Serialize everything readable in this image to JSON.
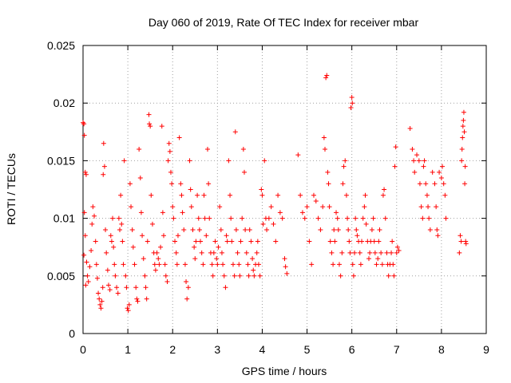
{
  "chart_data": {
    "type": "scatter",
    "title": "Day 060 of 2019, Rate Of TEC Index for receiver mbar",
    "xlabel": "GPS time / hours",
    "ylabel": "ROTI / TECUs",
    "xlim": [
      0,
      9
    ],
    "ylim": [
      0,
      0.025
    ],
    "xticks": [
      "0",
      "1",
      "2",
      "3",
      "4",
      "5",
      "6",
      "7",
      "8",
      "9"
    ],
    "yticks": [
      "0",
      "0.005",
      "0.01",
      "0.015",
      "0.02",
      "0.025"
    ],
    "grid": true,
    "marker": "+",
    "series": [
      {
        "name": "ROTI",
        "color": "#ff0000",
        "points": [
          [
            0.0,
            0.0183
          ],
          [
            0.02,
            0.0182
          ],
          [
            0.03,
            0.0172
          ],
          [
            0.05,
            0.014
          ],
          [
            0.07,
            0.0138
          ],
          [
            0.03,
            0.0105
          ],
          [
            0.05,
            0.0085
          ],
          [
            0.02,
            0.0068
          ],
          [
            0.08,
            0.0062
          ],
          [
            0.1,
            0.005
          ],
          [
            0.12,
            0.0045
          ],
          [
            0.06,
            0.0042
          ],
          [
            0.15,
            0.0058
          ],
          [
            0.18,
            0.0072
          ],
          [
            0.2,
            0.0095
          ],
          [
            0.22,
            0.011
          ],
          [
            0.25,
            0.0102
          ],
          [
            0.28,
            0.008
          ],
          [
            0.3,
            0.006
          ],
          [
            0.32,
            0.0048
          ],
          [
            0.34,
            0.0035
          ],
          [
            0.36,
            0.003
          ],
          [
            0.38,
            0.0025
          ],
          [
            0.4,
            0.0022
          ],
          [
            0.42,
            0.0028
          ],
          [
            0.44,
            0.004
          ],
          [
            0.46,
            0.0165
          ],
          [
            0.48,
            0.0145
          ],
          [
            0.45,
            0.0138
          ],
          [
            0.5,
            0.009
          ],
          [
            0.52,
            0.007
          ],
          [
            0.55,
            0.0055
          ],
          [
            0.57,
            0.0042
          ],
          [
            0.6,
            0.0038
          ],
          [
            0.62,
            0.0085
          ],
          [
            0.64,
            0.008
          ],
          [
            0.66,
            0.01
          ],
          [
            0.68,
            0.0075
          ],
          [
            0.7,
            0.006
          ],
          [
            0.72,
            0.005
          ],
          [
            0.75,
            0.004
          ],
          [
            0.78,
            0.0035
          ],
          [
            0.8,
            0.01
          ],
          [
            0.82,
            0.009
          ],
          [
            0.84,
            0.012
          ],
          [
            0.86,
            0.0095
          ],
          [
            0.88,
            0.008
          ],
          [
            0.9,
            0.006
          ],
          [
            0.92,
            0.015
          ],
          [
            0.95,
            0.005
          ],
          [
            0.97,
            0.004
          ],
          [
            0.99,
            0.0022
          ],
          [
            1.01,
            0.002
          ],
          [
            1.03,
            0.0025
          ],
          [
            1.05,
            0.013
          ],
          [
            1.07,
            0.011
          ],
          [
            1.1,
            0.009
          ],
          [
            1.12,
            0.0075
          ],
          [
            1.15,
            0.006
          ],
          [
            1.18,
            0.004
          ],
          [
            1.2,
            0.003
          ],
          [
            1.22,
            0.0028
          ],
          [
            1.25,
            0.016
          ],
          [
            1.28,
            0.0135
          ],
          [
            1.3,
            0.0105
          ],
          [
            1.32,
            0.0085
          ],
          [
            1.35,
            0.0065
          ],
          [
            1.38,
            0.005
          ],
          [
            1.4,
            0.004
          ],
          [
            1.42,
            0.003
          ],
          [
            1.44,
            0.008
          ],
          [
            1.47,
            0.019
          ],
          [
            1.48,
            0.0182
          ],
          [
            1.5,
            0.018
          ],
          [
            1.52,
            0.012
          ],
          [
            1.55,
            0.0095
          ],
          [
            1.58,
            0.007
          ],
          [
            1.6,
            0.006
          ],
          [
            1.62,
            0.0055
          ],
          [
            1.65,
            0.007
          ],
          [
            1.68,
            0.0065
          ],
          [
            1.7,
            0.006
          ],
          [
            1.73,
            0.0075
          ],
          [
            1.76,
            0.018
          ],
          [
            1.78,
            0.0105
          ],
          [
            1.8,
            0.0085
          ],
          [
            1.83,
            0.006
          ],
          [
            1.85,
            0.005
          ],
          [
            1.88,
            0.0045
          ],
          [
            1.9,
            0.015
          ],
          [
            1.92,
            0.0165
          ],
          [
            1.94,
            0.0158
          ],
          [
            1.96,
            0.014
          ],
          [
            1.98,
            0.013
          ],
          [
            2.0,
            0.011
          ],
          [
            2.02,
            0.01
          ],
          [
            2.05,
            0.008
          ],
          [
            2.08,
            0.007
          ],
          [
            2.1,
            0.006
          ],
          [
            2.12,
            0.0085
          ],
          [
            2.15,
            0.017
          ],
          [
            2.18,
            0.013
          ],
          [
            2.2,
            0.012
          ],
          [
            2.22,
            0.0105
          ],
          [
            2.25,
            0.009
          ],
          [
            2.28,
            0.006
          ],
          [
            2.3,
            0.0045
          ],
          [
            2.32,
            0.003
          ],
          [
            2.35,
            0.004
          ],
          [
            2.38,
            0.015
          ],
          [
            2.4,
            0.0125
          ],
          [
            2.42,
            0.011
          ],
          [
            2.45,
            0.009
          ],
          [
            2.48,
            0.0075
          ],
          [
            2.5,
            0.0065
          ],
          [
            2.52,
            0.008
          ],
          [
            2.55,
            0.012
          ],
          [
            2.58,
            0.01
          ],
          [
            2.6,
            0.009
          ],
          [
            2.62,
            0.008
          ],
          [
            2.65,
            0.007
          ],
          [
            2.68,
            0.006
          ],
          [
            2.7,
            0.012
          ],
          [
            2.72,
            0.01
          ],
          [
            2.75,
            0.0085
          ],
          [
            2.78,
            0.016
          ],
          [
            2.8,
            0.013
          ],
          [
            2.82,
            0.01
          ],
          [
            2.85,
            0.007
          ],
          [
            2.88,
            0.006
          ],
          [
            2.9,
            0.005
          ],
          [
            2.92,
            0.007
          ],
          [
            2.95,
            0.008
          ],
          [
            2.98,
            0.0065
          ],
          [
            3.0,
            0.006
          ],
          [
            3.02,
            0.0075
          ],
          [
            3.05,
            0.011
          ],
          [
            3.08,
            0.009
          ],
          [
            3.1,
            0.007
          ],
          [
            3.12,
            0.006
          ],
          [
            3.15,
            0.005
          ],
          [
            3.18,
            0.004
          ],
          [
            3.2,
            0.0085
          ],
          [
            3.22,
            0.008
          ],
          [
            3.25,
            0.015
          ],
          [
            3.28,
            0.012
          ],
          [
            3.3,
            0.01
          ],
          [
            3.32,
            0.008
          ],
          [
            3.35,
            0.006
          ],
          [
            3.38,
            0.005
          ],
          [
            3.4,
            0.0175
          ],
          [
            3.42,
            0.009
          ],
          [
            3.45,
            0.007
          ],
          [
            3.48,
            0.006
          ],
          [
            3.5,
            0.005
          ],
          [
            3.52,
            0.008
          ],
          [
            3.55,
            0.01
          ],
          [
            3.58,
            0.016
          ],
          [
            3.6,
            0.014
          ],
          [
            3.62,
            0.009
          ],
          [
            3.65,
            0.007
          ],
          [
            3.68,
            0.006
          ],
          [
            3.7,
            0.005
          ],
          [
            3.72,
            0.009
          ],
          [
            3.75,
            0.008
          ],
          [
            3.78,
            0.0065
          ],
          [
            3.8,
            0.0055
          ],
          [
            3.82,
            0.005
          ],
          [
            3.85,
            0.006
          ],
          [
            3.88,
            0.007
          ],
          [
            3.9,
            0.008
          ],
          [
            3.92,
            0.006
          ],
          [
            3.95,
            0.005
          ],
          [
            3.98,
            0.0125
          ],
          [
            4.0,
            0.012
          ],
          [
            4.02,
            0.0095
          ],
          [
            4.05,
            0.015
          ],
          [
            4.08,
            0.01
          ],
          [
            4.1,
            0.009
          ],
          [
            4.15,
            0.01
          ],
          [
            4.2,
            0.011
          ],
          [
            4.25,
            0.0095
          ],
          [
            4.3,
            0.008
          ],
          [
            4.35,
            0.012
          ],
          [
            4.4,
            0.0105
          ],
          [
            4.45,
            0.01
          ],
          [
            4.5,
            0.0065
          ],
          [
            4.52,
            0.0058
          ],
          [
            4.55,
            0.0052
          ],
          [
            4.8,
            0.0155
          ],
          [
            4.85,
            0.012
          ],
          [
            4.9,
            0.0105
          ],
          [
            4.95,
            0.01
          ],
          [
            5.0,
            0.011
          ],
          [
            5.05,
            0.008
          ],
          [
            5.1,
            0.006
          ],
          [
            5.15,
            0.012
          ],
          [
            5.2,
            0.0115
          ],
          [
            5.25,
            0.01
          ],
          [
            5.3,
            0.009
          ],
          [
            5.35,
            0.011
          ],
          [
            5.38,
            0.017
          ],
          [
            5.4,
            0.016
          ],
          [
            5.42,
            0.0222
          ],
          [
            5.44,
            0.0224
          ],
          [
            5.46,
            0.014
          ],
          [
            5.48,
            0.013
          ],
          [
            5.5,
            0.011
          ],
          [
            5.52,
            0.008
          ],
          [
            5.55,
            0.007
          ],
          [
            5.58,
            0.006
          ],
          [
            5.6,
            0.009
          ],
          [
            5.62,
            0.008
          ],
          [
            5.65,
            0.0105
          ],
          [
            5.68,
            0.01
          ],
          [
            5.7,
            0.009
          ],
          [
            5.72,
            0.006
          ],
          [
            5.75,
            0.005
          ],
          [
            5.78,
            0.007
          ],
          [
            5.8,
            0.013
          ],
          [
            5.82,
            0.0145
          ],
          [
            5.85,
            0.015
          ],
          [
            5.88,
            0.012
          ],
          [
            5.9,
            0.01
          ],
          [
            5.92,
            0.009
          ],
          [
            5.94,
            0.008
          ],
          [
            5.96,
            0.007
          ],
          [
            5.98,
            0.0196
          ],
          [
            6.0,
            0.0205
          ],
          [
            6.01,
            0.02
          ],
          [
            6.02,
            0.006
          ],
          [
            6.04,
            0.005
          ],
          [
            6.06,
            0.007
          ],
          [
            6.08,
            0.01
          ],
          [
            6.1,
            0.009
          ],
          [
            6.12,
            0.0085
          ],
          [
            6.15,
            0.008
          ],
          [
            6.18,
            0.007
          ],
          [
            6.2,
            0.006
          ],
          [
            6.22,
            0.008
          ],
          [
            6.25,
            0.01
          ],
          [
            6.28,
            0.011
          ],
          [
            6.3,
            0.012
          ],
          [
            6.32,
            0.0095
          ],
          [
            6.35,
            0.008
          ],
          [
            6.38,
            0.0065
          ],
          [
            6.4,
            0.007
          ],
          [
            6.42,
            0.008
          ],
          [
            6.45,
            0.009
          ],
          [
            6.48,
            0.01
          ],
          [
            6.5,
            0.008
          ],
          [
            6.52,
            0.007
          ],
          [
            6.55,
            0.006
          ],
          [
            6.58,
            0.0065
          ],
          [
            6.6,
            0.008
          ],
          [
            6.62,
            0.009
          ],
          [
            6.65,
            0.007
          ],
          [
            6.68,
            0.006
          ],
          [
            6.7,
            0.012
          ],
          [
            6.72,
            0.0125
          ],
          [
            6.75,
            0.01
          ],
          [
            6.78,
            0.007
          ],
          [
            6.8,
            0.006
          ],
          [
            6.82,
            0.005
          ],
          [
            6.85,
            0.006
          ],
          [
            6.88,
            0.007
          ],
          [
            6.9,
            0.008
          ],
          [
            6.92,
            0.006
          ],
          [
            6.94,
            0.005
          ],
          [
            6.96,
            0.0145
          ],
          [
            6.98,
            0.0162
          ],
          [
            7.0,
            0.007
          ],
          [
            7.02,
            0.0075
          ],
          [
            7.05,
            0.0072
          ],
          [
            7.3,
            0.0178
          ],
          [
            7.35,
            0.016
          ],
          [
            7.38,
            0.015
          ],
          [
            7.4,
            0.014
          ],
          [
            7.45,
            0.0155
          ],
          [
            7.5,
            0.015
          ],
          [
            7.52,
            0.013
          ],
          [
            7.55,
            0.011
          ],
          [
            7.58,
            0.01
          ],
          [
            7.6,
            0.0145
          ],
          [
            7.62,
            0.015
          ],
          [
            7.65,
            0.013
          ],
          [
            7.68,
            0.012
          ],
          [
            7.7,
            0.011
          ],
          [
            7.72,
            0.01
          ],
          [
            7.75,
            0.009
          ],
          [
            7.8,
            0.014
          ],
          [
            7.85,
            0.013
          ],
          [
            7.88,
            0.011
          ],
          [
            7.9,
            0.009
          ],
          [
            7.92,
            0.0085
          ],
          [
            7.95,
            0.014
          ],
          [
            8.0,
            0.0135
          ],
          [
            8.02,
            0.0145
          ],
          [
            8.05,
            0.013
          ],
          [
            8.08,
            0.012
          ],
          [
            8.1,
            0.01
          ],
          [
            8.4,
            0.007
          ],
          [
            8.42,
            0.0085
          ],
          [
            8.44,
            0.008
          ],
          [
            8.45,
            0.015
          ],
          [
            8.46,
            0.016
          ],
          [
            8.47,
            0.017
          ],
          [
            8.48,
            0.018
          ],
          [
            8.49,
            0.0185
          ],
          [
            8.5,
            0.0192
          ],
          [
            8.51,
            0.0175
          ],
          [
            8.52,
            0.013
          ],
          [
            8.53,
            0.0145
          ],
          [
            8.54,
            0.008
          ],
          [
            8.55,
            0.0078
          ]
        ]
      }
    ]
  }
}
